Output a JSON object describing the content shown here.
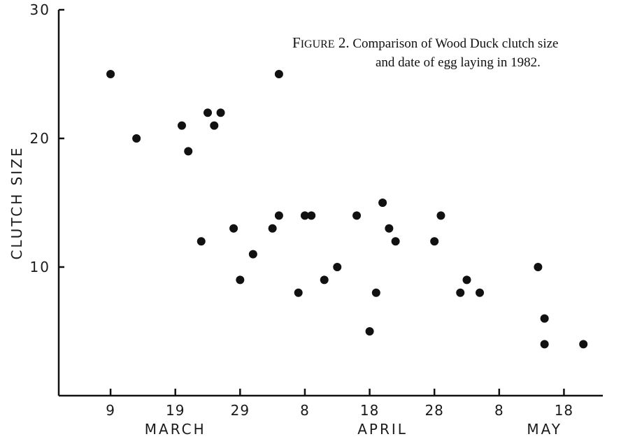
{
  "caption": {
    "figure_first": "F",
    "figure_rest": "IGURE",
    "figure_number": "2.",
    "line1": "Comparison of Wood Duck clutch size",
    "line2": "and date of egg laying in 1982."
  },
  "chart_data": {
    "type": "scatter",
    "title": "FIGURE 2. Comparison of Wood Duck clutch size and date of egg laying in 1982.",
    "ylabel": "CLUTCH SIZE",
    "xlabel": "",
    "ylim": [
      0,
      30
    ],
    "yticks": [
      10,
      20,
      30
    ],
    "xlim": [
      "1982-03-01",
      "1982-05-24"
    ],
    "xticks": [
      {
        "date": "1982-03-09",
        "label": "9"
      },
      {
        "date": "1982-03-19",
        "label": "19"
      },
      {
        "date": "1982-03-29",
        "label": "29"
      },
      {
        "date": "1982-04-08",
        "label": "8"
      },
      {
        "date": "1982-04-18",
        "label": "18"
      },
      {
        "date": "1982-04-28",
        "label": "28"
      },
      {
        "date": "1982-05-08",
        "label": "8"
      },
      {
        "date": "1982-05-18",
        "label": "18"
      }
    ],
    "month_labels": [
      {
        "label": "MARCH",
        "date": "1982-03-19"
      },
      {
        "label": "APRIL",
        "date": "1982-04-20"
      },
      {
        "label": "MAY",
        "date": "1982-05-15"
      }
    ],
    "grid": false,
    "points": [
      {
        "x": "1982-03-09",
        "y": 25
      },
      {
        "x": "1982-03-13",
        "y": 20
      },
      {
        "x": "1982-03-20",
        "y": 21
      },
      {
        "x": "1982-03-21",
        "y": 19
      },
      {
        "x": "1982-03-23",
        "y": 12
      },
      {
        "x": "1982-03-24",
        "y": 22
      },
      {
        "x": "1982-03-25",
        "y": 21
      },
      {
        "x": "1982-03-26",
        "y": 22
      },
      {
        "x": "1982-03-28",
        "y": 13
      },
      {
        "x": "1982-03-29",
        "y": 9
      },
      {
        "x": "1982-03-31",
        "y": 11
      },
      {
        "x": "1982-04-03",
        "y": 13
      },
      {
        "x": "1982-04-04",
        "y": 25
      },
      {
        "x": "1982-04-04",
        "y": 14
      },
      {
        "x": "1982-04-07",
        "y": 8
      },
      {
        "x": "1982-04-08",
        "y": 14
      },
      {
        "x": "1982-04-09",
        "y": 14
      },
      {
        "x": "1982-04-11",
        "y": 9
      },
      {
        "x": "1982-04-13",
        "y": 10
      },
      {
        "x": "1982-04-16",
        "y": 14
      },
      {
        "x": "1982-04-18",
        "y": 5
      },
      {
        "x": "1982-04-19",
        "y": 8
      },
      {
        "x": "1982-04-20",
        "y": 15
      },
      {
        "x": "1982-04-21",
        "y": 13
      },
      {
        "x": "1982-04-22",
        "y": 12
      },
      {
        "x": "1982-04-28",
        "y": 12
      },
      {
        "x": "1982-04-29",
        "y": 14
      },
      {
        "x": "1982-05-02",
        "y": 8
      },
      {
        "x": "1982-05-03",
        "y": 9
      },
      {
        "x": "1982-05-05",
        "y": 8
      },
      {
        "x": "1982-05-14",
        "y": 10
      },
      {
        "x": "1982-05-15",
        "y": 6
      },
      {
        "x": "1982-05-15",
        "y": 4
      },
      {
        "x": "1982-05-21",
        "y": 4
      }
    ]
  }
}
